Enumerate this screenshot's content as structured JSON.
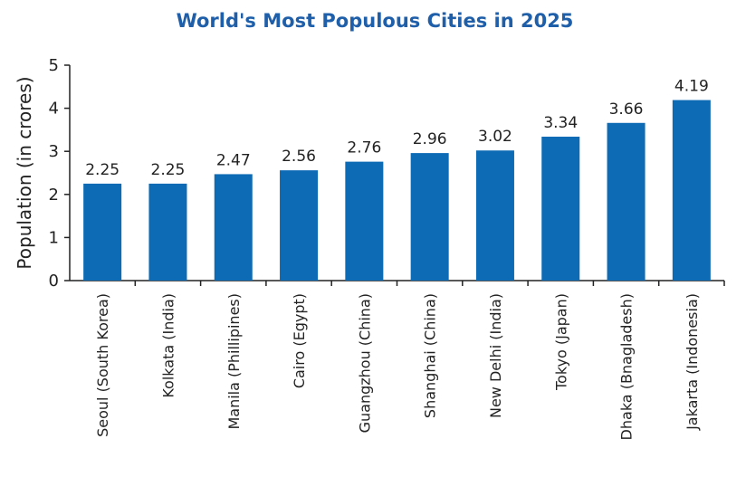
{
  "chart_data": {
    "type": "bar",
    "title": "World's Most Populous Cities in 2025",
    "xlabel": "",
    "ylabel": "Population (in crores)",
    "categories": [
      "Seoul (South Korea)",
      "Kolkata (India)",
      "Manila (Phillipines)",
      "Cairo (Egypt)",
      "Guangzhou (China)",
      "Shanghai (China)",
      "New Delhi (India)",
      "Tokyo (Japan)",
      "Dhaka (Bnagladesh)",
      "Jakarta (Indonesia)"
    ],
    "values": [
      2.25,
      2.25,
      2.47,
      2.56,
      2.76,
      2.96,
      3.02,
      3.34,
      3.66,
      4.19
    ],
    "value_labels": [
      "2.25",
      "2.25",
      "2.47",
      "2.56",
      "2.76",
      "2.96",
      "3.02",
      "3.34",
      "3.66",
      "4.19"
    ],
    "ylim": [
      0,
      5
    ],
    "yticks": [
      "0",
      "1",
      "2",
      "3",
      "4",
      "5"
    ],
    "grid": false,
    "bar_color": "#0d6ab5",
    "title_color": "#1f5faa"
  }
}
